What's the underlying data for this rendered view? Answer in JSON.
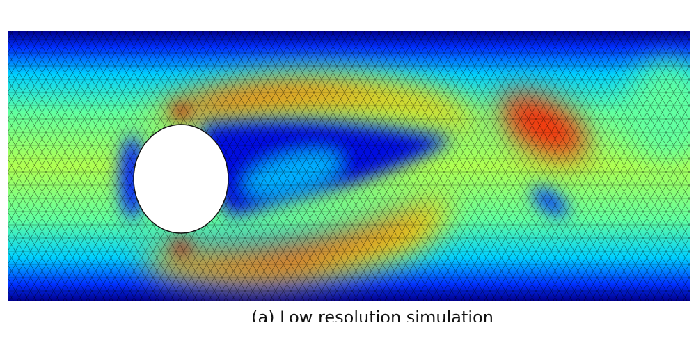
{
  "caption": "(a) Low resolution simulation"
}
